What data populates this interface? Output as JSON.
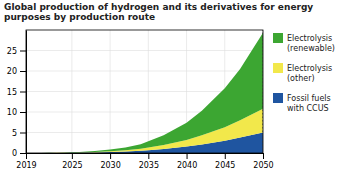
{
  "chart_data": {
    "type": "area",
    "stacked": true,
    "title": "Global production of hydrogen and its derivatives for energy\npurposes by production route",
    "x": [
      2019,
      2020,
      2021,
      2022,
      2023,
      2024,
      2025,
      2026,
      2027,
      2028,
      2030,
      2032,
      2034,
      2035,
      2037,
      2040,
      2042,
      2045,
      2047,
      2050
    ],
    "series": [
      {
        "name": "Fossil fuels\nwith CCUS",
        "color": "#1f55a0",
        "values": [
          0.0,
          0.005,
          0.01,
          0.015,
          0.02,
          0.03,
          0.05,
          0.07,
          0.1,
          0.14,
          0.22,
          0.35,
          0.55,
          0.7,
          1.0,
          1.6,
          2.1,
          3.0,
          3.8,
          5.0
        ]
      },
      {
        "name": "Electrolysis\n(other)",
        "color": "#f2e84b",
        "values": [
          0.0,
          0.004,
          0.008,
          0.012,
          0.018,
          0.025,
          0.04,
          0.06,
          0.09,
          0.12,
          0.2,
          0.32,
          0.5,
          0.65,
          0.95,
          1.6,
          2.2,
          3.3,
          4.2,
          5.8
        ]
      },
      {
        "name": "Electrolysis\n(renewable)",
        "color": "#3ca632",
        "values": [
          0.0,
          0.005,
          0.01,
          0.02,
          0.03,
          0.05,
          0.08,
          0.12,
          0.18,
          0.25,
          0.42,
          0.7,
          1.1,
          1.5,
          2.4,
          4.2,
          6.0,
          9.5,
          12.5,
          18.5
        ]
      }
    ],
    "xlim": [
      2019,
      2050
    ],
    "xticks": [
      2019,
      2025,
      2030,
      2035,
      2040,
      2045,
      2050
    ],
    "ylim": [
      0,
      30
    ],
    "yticks": [
      0,
      5,
      10,
      15,
      20,
      25
    ],
    "vlines": [
      2050
    ],
    "grid": true,
    "legend": "right"
  }
}
